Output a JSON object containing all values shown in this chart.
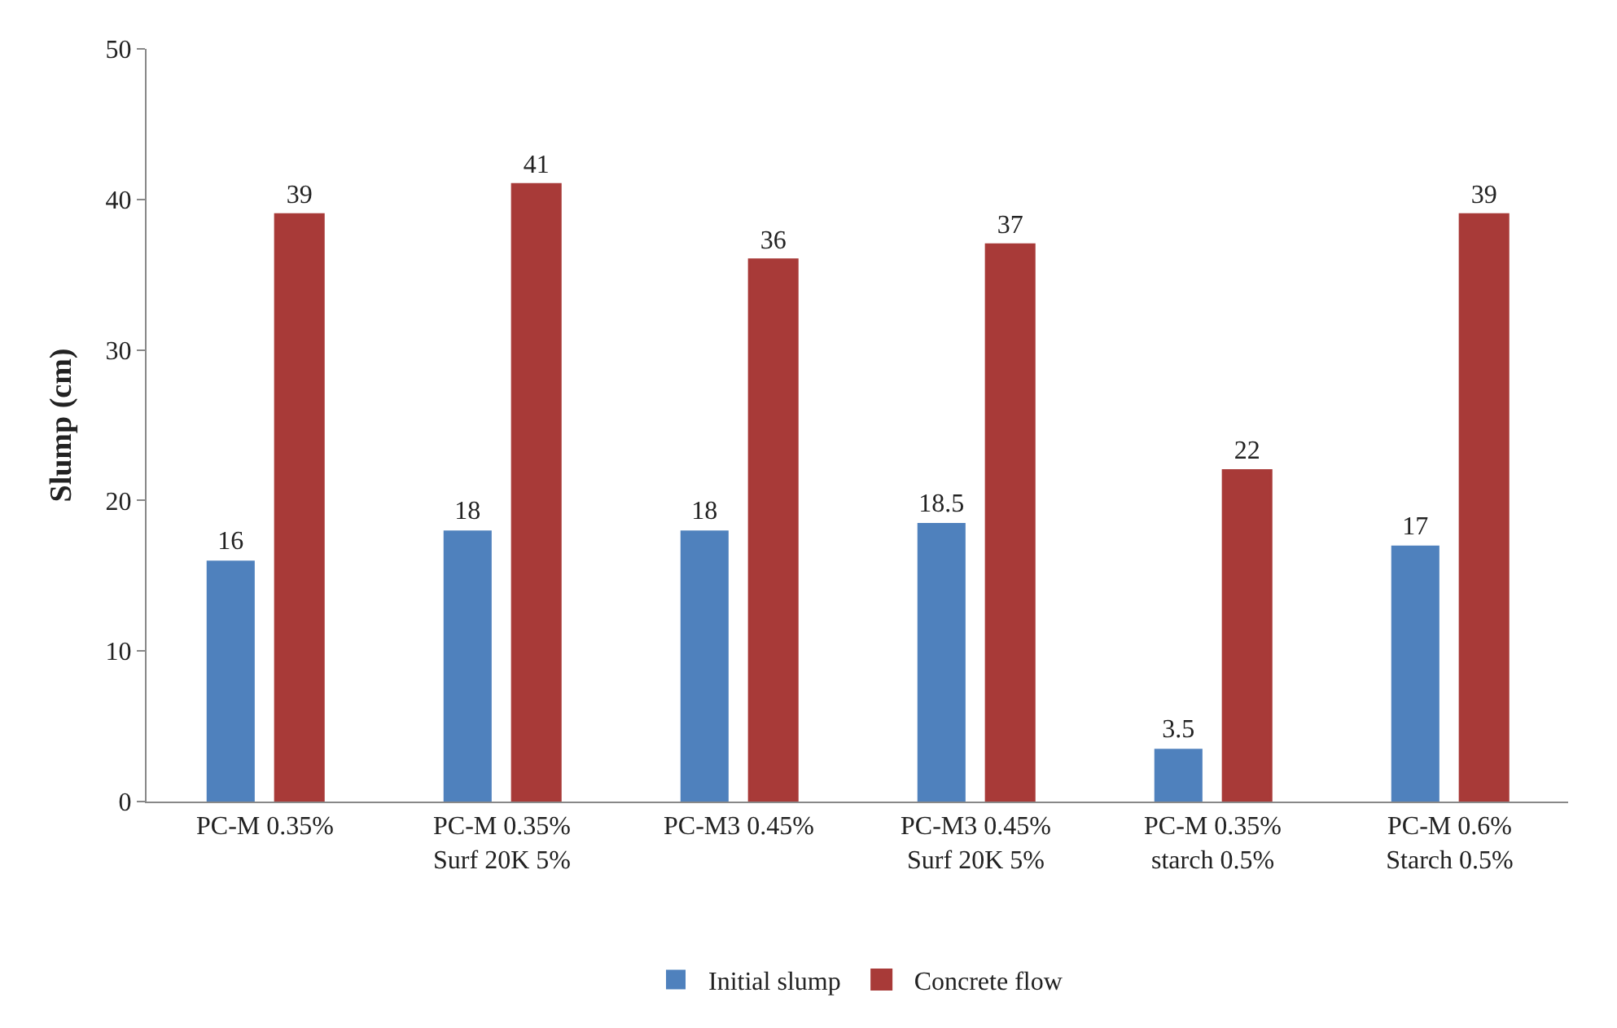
{
  "chart_data": {
    "type": "bar",
    "ylabel": "Slump (cm)",
    "categories": [
      "PC-M 0.35%",
      "PC-M 0.35%\nSurf 20K 5%",
      "PC-M3 0.45%",
      "PC-M3 0.45%\nSurf 20K 5%",
      "PC-M 0.35%\nstarch 0.5%",
      "PC-M 0.6%\nStarch 0.5%"
    ],
    "series": [
      {
        "name": "Initial slump",
        "color": "#4f81bd",
        "values": [
          16,
          18,
          18,
          18.5,
          3.5,
          17
        ]
      },
      {
        "name": "Concrete flow",
        "color": "#a83a38",
        "values": [
          39,
          41,
          36,
          37,
          22,
          39
        ]
      }
    ],
    "ylim": [
      0,
      50
    ],
    "yticks": [
      0,
      10,
      20,
      30,
      40,
      50
    ],
    "legend": "bottom",
    "data_labels": true
  }
}
